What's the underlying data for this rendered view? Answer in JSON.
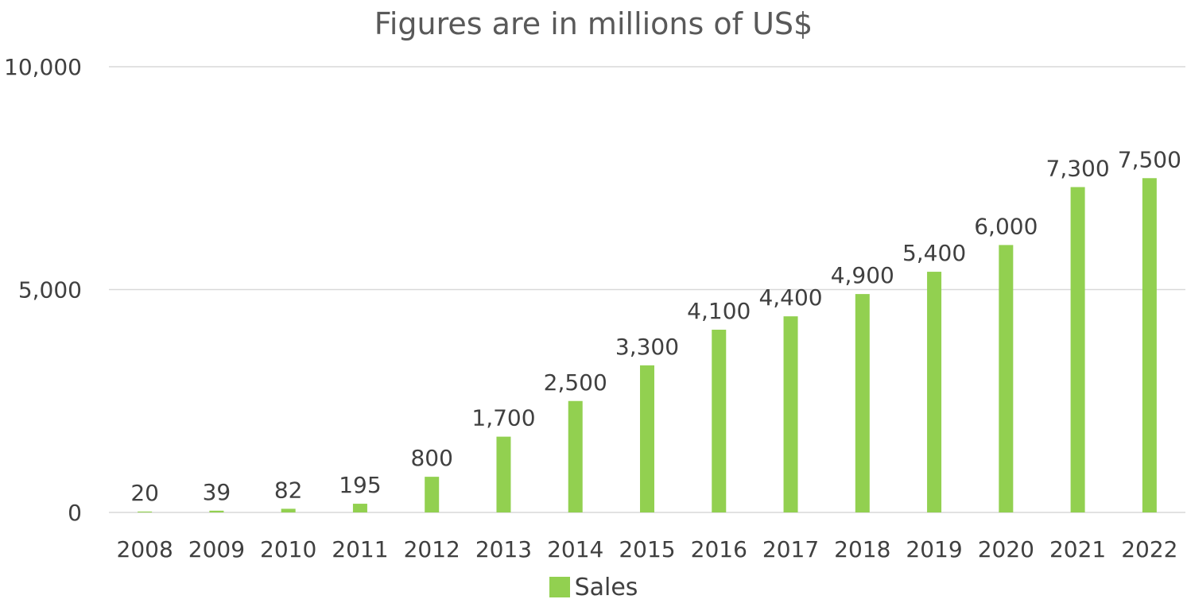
{
  "colors": {
    "bar": "#92d050",
    "grid": "#d9d9d9",
    "text": "#404040",
    "title": "#595959"
  },
  "chart_data": {
    "type": "bar",
    "title": "Figures are in millions of US$",
    "xlabel": "",
    "ylabel": "",
    "categories": [
      "2008",
      "2009",
      "2010",
      "2011",
      "2012",
      "2013",
      "2014",
      "2015",
      "2016",
      "2017",
      "2018",
      "2019",
      "2020",
      "2021",
      "2022"
    ],
    "series": [
      {
        "name": "Sales",
        "values": [
          20,
          39,
          82,
          195,
          800,
          1700,
          2500,
          3300,
          4100,
          4400,
          4900,
          5400,
          6000,
          7300,
          7500
        ],
        "data_labels": [
          "20",
          "39",
          "82",
          "195",
          "800",
          "1,700",
          "2,500",
          "3,300",
          "4,100",
          "4,400",
          "4,900",
          "5,400",
          "6,000",
          "7,300",
          "7,500"
        ]
      }
    ],
    "ylim": [
      0,
      10000
    ],
    "yticks": [
      0,
      5000,
      10000
    ],
    "ytick_labels": [
      "0",
      "5,000",
      "10,000"
    ],
    "grid": true,
    "legend_position": "bottom"
  }
}
